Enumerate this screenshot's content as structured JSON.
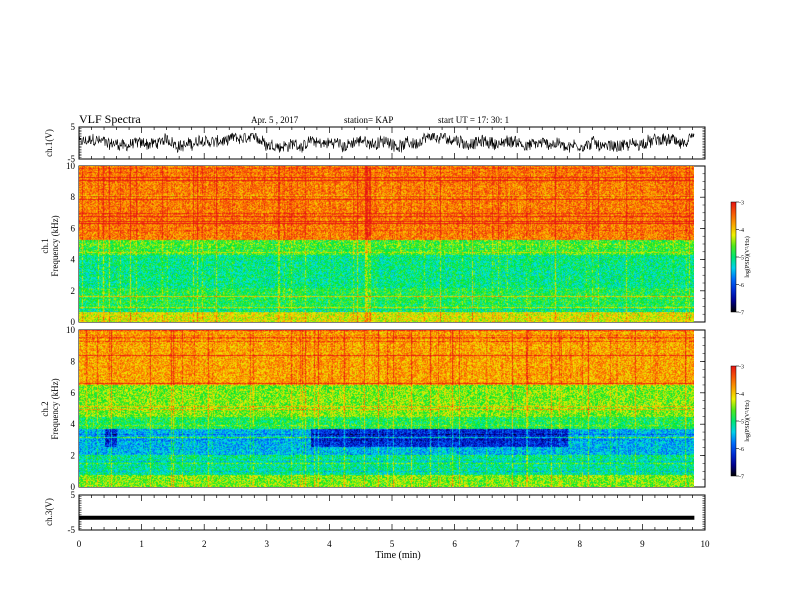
{
  "header": {
    "title": "VLF Spectra",
    "date": "Apr. 5 , 2017",
    "station": "station= KAP",
    "start": "start UT = 17: 30: 1"
  },
  "chart_data": [
    {
      "type": "line",
      "name": "ch1-waveform",
      "ylabel": "ch.1(V)",
      "ylim": [
        -5,
        5
      ],
      "yticks": [
        "5",
        "-5"
      ],
      "xlim": [
        0,
        10
      ],
      "signal": {
        "x_end_min": 9.83,
        "range_v": [
          -3,
          3
        ]
      }
    },
    {
      "type": "heatmap",
      "name": "ch1-spectrogram",
      "ylabel_lines": [
        "ch.1",
        "Frequency (kHz)"
      ],
      "ylim": [
        0,
        10
      ],
      "yticks": [
        "0",
        "2",
        "4",
        "6",
        "8",
        "10"
      ],
      "xlim": [
        0,
        10
      ],
      "x_end_min": 9.83,
      "colorbar": {
        "label": "log(PSD)(V²/Hz)",
        "range": [
          -7,
          -3
        ],
        "ticks": [
          "-3",
          "-4",
          "-5",
          "-6",
          "-7"
        ]
      }
    },
    {
      "type": "heatmap",
      "name": "ch2-spectrogram",
      "ylabel_lines": [
        "ch.2",
        "Frequency (kHz)"
      ],
      "ylim": [
        0,
        10
      ],
      "yticks": [
        "0",
        "2",
        "4",
        "6",
        "8",
        "10"
      ],
      "xlim": [
        0,
        10
      ],
      "x_end_min": 9.83,
      "colorbar": {
        "label": "log(PSD)(V²/Hz)",
        "range": [
          -7,
          -3
        ],
        "ticks": [
          "-3",
          "-4",
          "-5",
          "-6",
          "-7"
        ]
      }
    },
    {
      "type": "line",
      "name": "ch3-waveform",
      "ylabel": "ch.3(V)",
      "ylim": [
        -5,
        5
      ],
      "yticks": [
        "5",
        "-5"
      ],
      "xlim": [
        0,
        10
      ],
      "signal": {
        "x_end_min": 9.83,
        "level_v": -1.5
      }
    }
  ],
  "xaxis": {
    "label": "Time (min)",
    "ticks": [
      "0",
      "1",
      "2",
      "3",
      "4",
      "5",
      "6",
      "7",
      "8",
      "9",
      "10"
    ]
  }
}
